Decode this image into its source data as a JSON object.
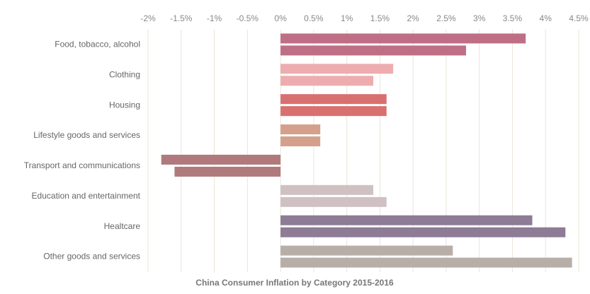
{
  "chart_data": {
    "type": "bar",
    "orientation": "horizontal",
    "title": "China Consumer Inflation by Category 2015-2016",
    "categories": [
      "Food, tobacco, alcohol",
      "Clothing",
      "Housing",
      "Lifestyle goods and services",
      "Transport and communications",
      "Education and entertainment",
      "Healtcare",
      "Other goods and services"
    ],
    "colors": [
      "#bf6f85",
      "#edadb0",
      "#d97070",
      "#d4a08c",
      "#b07a7c",
      "#cfc1c2",
      "#8e7b96",
      "#b8aea8"
    ],
    "series": [
      {
        "values": [
          3.7,
          1.7,
          1.6,
          0.6,
          -1.8,
          1.4,
          3.8,
          2.6
        ]
      },
      {
        "values": [
          2.8,
          1.4,
          1.6,
          0.6,
          -1.6,
          1.6,
          4.3,
          4.4
        ]
      }
    ],
    "xlim": [
      -2,
      4.5
    ],
    "xticks": [
      {
        "value": -2,
        "label": "-2%"
      },
      {
        "value": -1.5,
        "label": "-1.5%"
      },
      {
        "value": -1,
        "label": "-1%"
      },
      {
        "value": -0.5,
        "label": "-0.5%"
      },
      {
        "value": 0,
        "label": "0%"
      },
      {
        "value": 0.5,
        "label": "0.5%"
      },
      {
        "value": 1,
        "label": "1%"
      },
      {
        "value": 1.5,
        "label": "1.5%"
      },
      {
        "value": 2,
        "label": "2%"
      },
      {
        "value": 2.5,
        "label": "2.5%"
      },
      {
        "value": 3,
        "label": "3%"
      },
      {
        "value": 3.5,
        "label": "3.5%"
      },
      {
        "value": 4,
        "label": "4%"
      },
      {
        "value": 4.5,
        "label": "4.5%"
      }
    ],
    "grid": true
  }
}
